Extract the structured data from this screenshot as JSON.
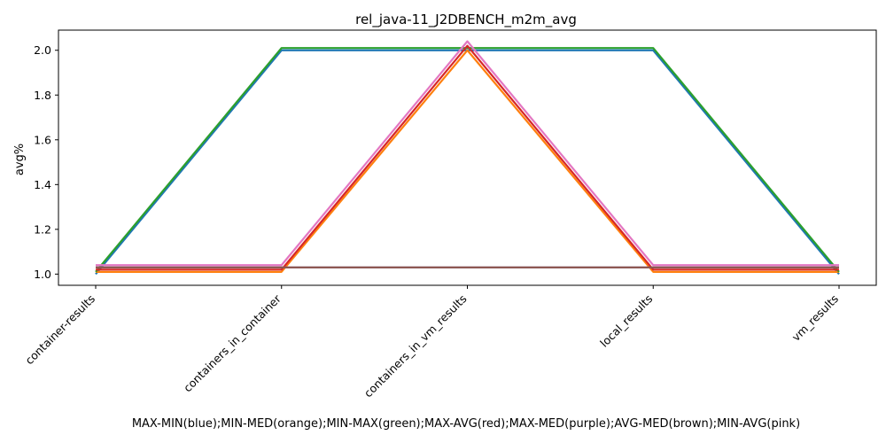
{
  "chart_data": {
    "type": "line",
    "title": "rel_java-11_J2DBENCH_m2m_avg",
    "xlabel": "MAX-MIN(blue);MIN-MED(orange);MIN-MAX(green);MAX-AVG(red);MAX-MED(purple);AVG-MED(brown);MIN-AVG(pink)",
    "ylabel": "avg%",
    "categories": [
      "container-results",
      "containers_in_container",
      "containers_in_vm_results",
      "local_results",
      "vm_results"
    ],
    "ylim": [
      0.95,
      2.09
    ],
    "yticks": [
      1.0,
      1.2,
      1.4,
      1.6,
      1.8,
      2.0
    ],
    "ytick_labels": [
      "1.0",
      "1.2",
      "1.4",
      "1.6",
      "1.8",
      "2.0"
    ],
    "grid": false,
    "series": [
      {
        "color": "#1f77b4",
        "values": [
          1.0,
          2.0,
          2.0,
          2.0,
          1.0
        ]
      },
      {
        "color": "#ff7f0e",
        "values": [
          1.01,
          1.01,
          2.0,
          1.01,
          1.01
        ]
      },
      {
        "color": "#2ca02c",
        "values": [
          1.01,
          2.01,
          2.01,
          2.01,
          1.01
        ]
      },
      {
        "color": "#d62728",
        "values": [
          1.02,
          1.02,
          2.02,
          1.02,
          1.02
        ]
      },
      {
        "color": "#9467bd",
        "values": [
          1.03,
          1.03,
          1.03,
          1.03,
          1.03
        ]
      },
      {
        "color": "#8c564b",
        "values": [
          1.03,
          1.03,
          1.03,
          1.03,
          1.03
        ]
      },
      {
        "color": "#e377c2",
        "values": [
          1.04,
          1.04,
          2.04,
          1.04,
          1.04
        ]
      }
    ]
  }
}
